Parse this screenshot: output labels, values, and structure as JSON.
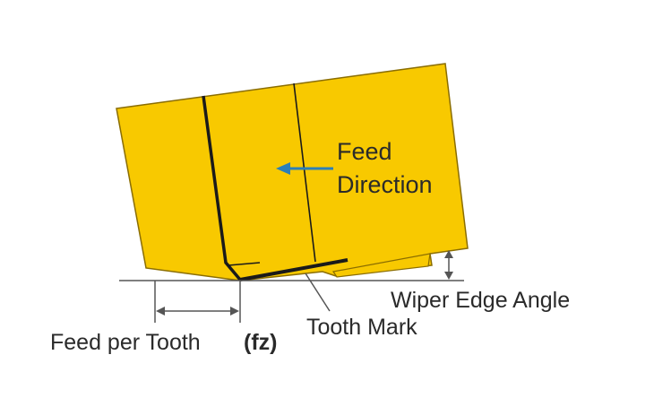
{
  "colors": {
    "insert_fill": "#F8C900",
    "insert_outline": "#8a6d00",
    "edge_line": "#1a1a1a",
    "arrow": "#2c7fb8",
    "guide_line": "#555555",
    "text": "#2a2a2a"
  },
  "labels": {
    "feed_direction_line1": "Feed",
    "feed_direction_line2": "Direction",
    "wiper_edge_angle": "Wiper Edge Angle",
    "tooth_mark": "Tooth Mark",
    "feed_per_tooth": "Feed per Tooth",
    "fz": "(fz)"
  }
}
